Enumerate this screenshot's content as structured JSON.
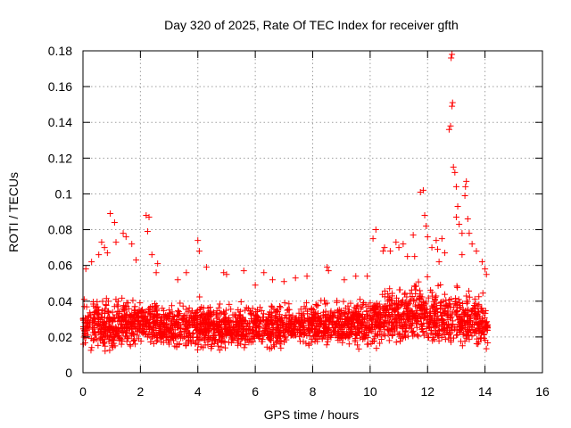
{
  "chart_data": {
    "type": "scatter",
    "title": "Day 320 of 2025, Rate Of TEC Index for receiver gfth",
    "xlabel": "GPS time / hours",
    "ylabel": "ROTI / TECUs",
    "xlim": [
      0,
      16
    ],
    "ylim": [
      0,
      0.18
    ],
    "xticks": [
      "0",
      "2",
      "4",
      "6",
      "8",
      "10",
      "12",
      "14",
      "16"
    ],
    "yticks": [
      "0",
      "0.02",
      "0.04",
      "0.06",
      "0.08",
      "0.1",
      "0.12",
      "0.14",
      "0.16",
      "0.18"
    ],
    "grid": true,
    "marker": "+",
    "color": "#ff0000",
    "data_extent_hours": [
      0,
      14.1
    ],
    "series": [
      {
        "name": "ROTI",
        "band_x": [
          0,
          1,
          2,
          3,
          4,
          5,
          6,
          7,
          8,
          9,
          10,
          10.5,
          11,
          11.5,
          12,
          12.5,
          13,
          13.5,
          14.1
        ],
        "band_low": [
          0.012,
          0.01,
          0.012,
          0.012,
          0.011,
          0.01,
          0.012,
          0.012,
          0.014,
          0.013,
          0.012,
          0.013,
          0.013,
          0.012,
          0.012,
          0.012,
          0.012,
          0.011,
          0.011
        ],
        "band_high": [
          0.045,
          0.048,
          0.046,
          0.043,
          0.044,
          0.042,
          0.043,
          0.042,
          0.043,
          0.044,
          0.046,
          0.052,
          0.055,
          0.058,
          0.055,
          0.053,
          0.052,
          0.05,
          0.048
        ],
        "outliers": [
          [
            0.1,
            0.058
          ],
          [
            0.3,
            0.062
          ],
          [
            0.55,
            0.066
          ],
          [
            0.65,
            0.073
          ],
          [
            0.75,
            0.07
          ],
          [
            0.85,
            0.067
          ],
          [
            0.95,
            0.089
          ],
          [
            1.1,
            0.084
          ],
          [
            1.15,
            0.073
          ],
          [
            1.4,
            0.078
          ],
          [
            1.5,
            0.076
          ],
          [
            1.7,
            0.072
          ],
          [
            1.85,
            0.063
          ],
          [
            2.2,
            0.088
          ],
          [
            2.3,
            0.087
          ],
          [
            2.25,
            0.079
          ],
          [
            2.4,
            0.066
          ],
          [
            2.6,
            0.061
          ],
          [
            2.55,
            0.056
          ],
          [
            3.3,
            0.052
          ],
          [
            3.6,
            0.056
          ],
          [
            4.0,
            0.074
          ],
          [
            4.05,
            0.068
          ],
          [
            4.3,
            0.059
          ],
          [
            4.9,
            0.056
          ],
          [
            5.0,
            0.055
          ],
          [
            5.6,
            0.057
          ],
          [
            6.0,
            0.049
          ],
          [
            6.3,
            0.056
          ],
          [
            6.6,
            0.052
          ],
          [
            7.0,
            0.051
          ],
          [
            7.4,
            0.053
          ],
          [
            7.8,
            0.054
          ],
          [
            8.5,
            0.059
          ],
          [
            8.55,
            0.057
          ],
          [
            9.1,
            0.052
          ],
          [
            9.5,
            0.054
          ],
          [
            9.9,
            0.054
          ],
          [
            10.1,
            0.075
          ],
          [
            10.2,
            0.08
          ],
          [
            10.45,
            0.068
          ],
          [
            10.5,
            0.07
          ],
          [
            10.7,
            0.068
          ],
          [
            10.9,
            0.073
          ],
          [
            11.0,
            0.07
          ],
          [
            11.15,
            0.072
          ],
          [
            11.3,
            0.065
          ],
          [
            11.5,
            0.077
          ],
          [
            11.55,
            0.065
          ],
          [
            11.75,
            0.101
          ],
          [
            11.85,
            0.102
          ],
          [
            11.9,
            0.088
          ],
          [
            11.95,
            0.082
          ],
          [
            12.0,
            0.076
          ],
          [
            12.15,
            0.07
          ],
          [
            12.3,
            0.074
          ],
          [
            12.35,
            0.069
          ],
          [
            12.5,
            0.075
          ],
          [
            12.6,
            0.067
          ],
          [
            12.75,
            0.136
          ],
          [
            12.8,
            0.138
          ],
          [
            12.85,
            0.149
          ],
          [
            12.87,
            0.151
          ],
          [
            12.82,
            0.176
          ],
          [
            12.85,
            0.178
          ],
          [
            12.9,
            0.115
          ],
          [
            12.95,
            0.112
          ],
          [
            13.0,
            0.104
          ],
          [
            13.05,
            0.093
          ],
          [
            13.0,
            0.087
          ],
          [
            13.1,
            0.083
          ],
          [
            13.2,
            0.078
          ],
          [
            13.3,
            0.099
          ],
          [
            13.35,
            0.107
          ],
          [
            13.32,
            0.104
          ],
          [
            13.4,
            0.086
          ],
          [
            13.45,
            0.078
          ],
          [
            13.55,
            0.072
          ],
          [
            13.7,
            0.068
          ],
          [
            13.9,
            0.062
          ],
          [
            14.0,
            0.058
          ],
          [
            14.05,
            0.055
          ],
          [
            13.2,
            0.066
          ],
          [
            12.4,
            0.062
          ]
        ]
      }
    ]
  }
}
